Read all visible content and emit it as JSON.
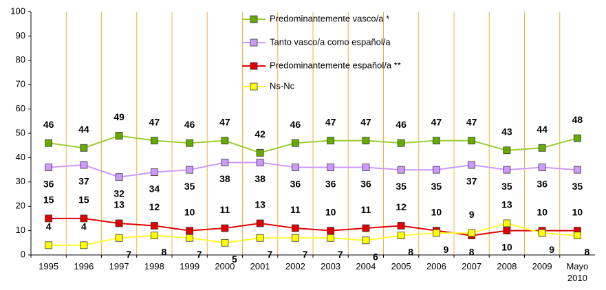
{
  "chart_data": {
    "type": "line",
    "categories": [
      "1995",
      "1996",
      "1997",
      "1998",
      "1999",
      "2000",
      "2001",
      "2002",
      "2003",
      "2004",
      "2005",
      "2006",
      "2007",
      "2008",
      "2009",
      "Mayo 2010"
    ],
    "series": [
      {
        "name": "Predominantemente vasco/a *",
        "color": "#99cc33",
        "marker_color": "#66aa00",
        "values": [
          46,
          44,
          49,
          47,
          46,
          47,
          42,
          46,
          47,
          47,
          46,
          47,
          47,
          43,
          44,
          48
        ]
      },
      {
        "name": "Tanto vasco/a como español/a",
        "color": "#cc99ff",
        "marker_color": "#cc99ff",
        "values": [
          36,
          37,
          32,
          34,
          35,
          38,
          38,
          36,
          36,
          36,
          35,
          35,
          37,
          35,
          36,
          35
        ]
      },
      {
        "name": "Predominantemente español/a **",
        "color": "#e00000",
        "marker_color": "#e00000",
        "values": [
          15,
          15,
          13,
          12,
          10,
          11,
          13,
          11,
          10,
          11,
          12,
          10,
          8,
          10,
          10,
          10
        ]
      },
      {
        "name": "Ns-Nc",
        "color": "#ffff33",
        "marker_color": "#ffff00",
        "values": [
          4,
          4,
          7,
          8,
          7,
          5,
          7,
          7,
          7,
          6,
          8,
          9,
          9,
          13,
          9,
          8
        ]
      }
    ],
    "ylim": [
      0,
      100
    ],
    "yticks": [
      0,
      10,
      20,
      30,
      40,
      50,
      60,
      70,
      80,
      90,
      100
    ]
  }
}
